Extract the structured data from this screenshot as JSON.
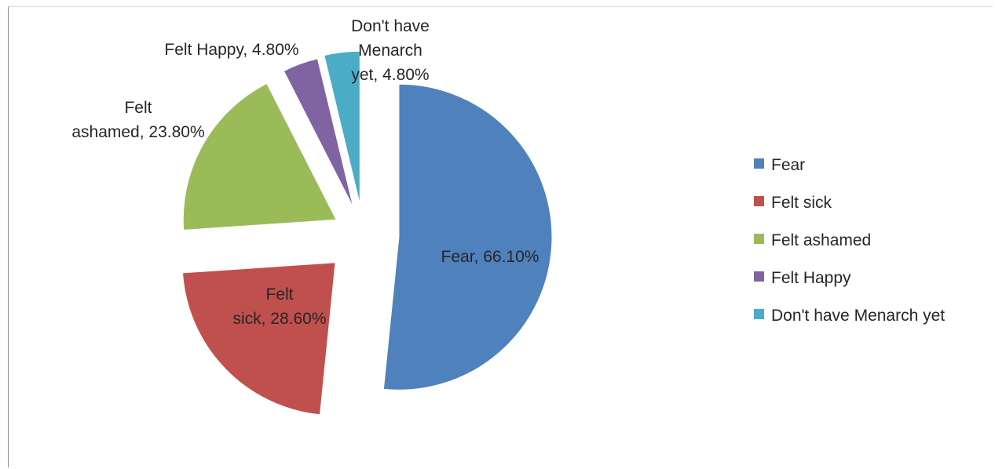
{
  "chart_data": {
    "type": "pie",
    "exploded": true,
    "legend_position": "right",
    "slices": [
      {
        "name": "Fear",
        "value": 66.1,
        "display": "66.10%",
        "color": "#4f81bd",
        "label_lines": [
          "Fear, 66.10%"
        ]
      },
      {
        "name": "Felt sick",
        "value": 28.6,
        "display": "28.60%",
        "color": "#c0504d",
        "label_lines": [
          "Felt",
          "sick, 28.60%"
        ]
      },
      {
        "name": "Felt ashamed",
        "value": 23.8,
        "display": "23.80%",
        "color": "#9bbb59",
        "label_lines": [
          "Felt",
          "ashamed, 23.80%"
        ]
      },
      {
        "name": "Felt Happy",
        "value": 4.8,
        "display": "4.80%",
        "color": "#8064a2",
        "label_lines": [
          "Felt Happy, 4.80%"
        ]
      },
      {
        "name": "Don't have Menarch yet",
        "value": 4.8,
        "display": "4.80%",
        "color": "#4bacc6",
        "label_lines": [
          "Don't have",
          "Menarch",
          "yet, 4.80%"
        ]
      }
    ]
  }
}
